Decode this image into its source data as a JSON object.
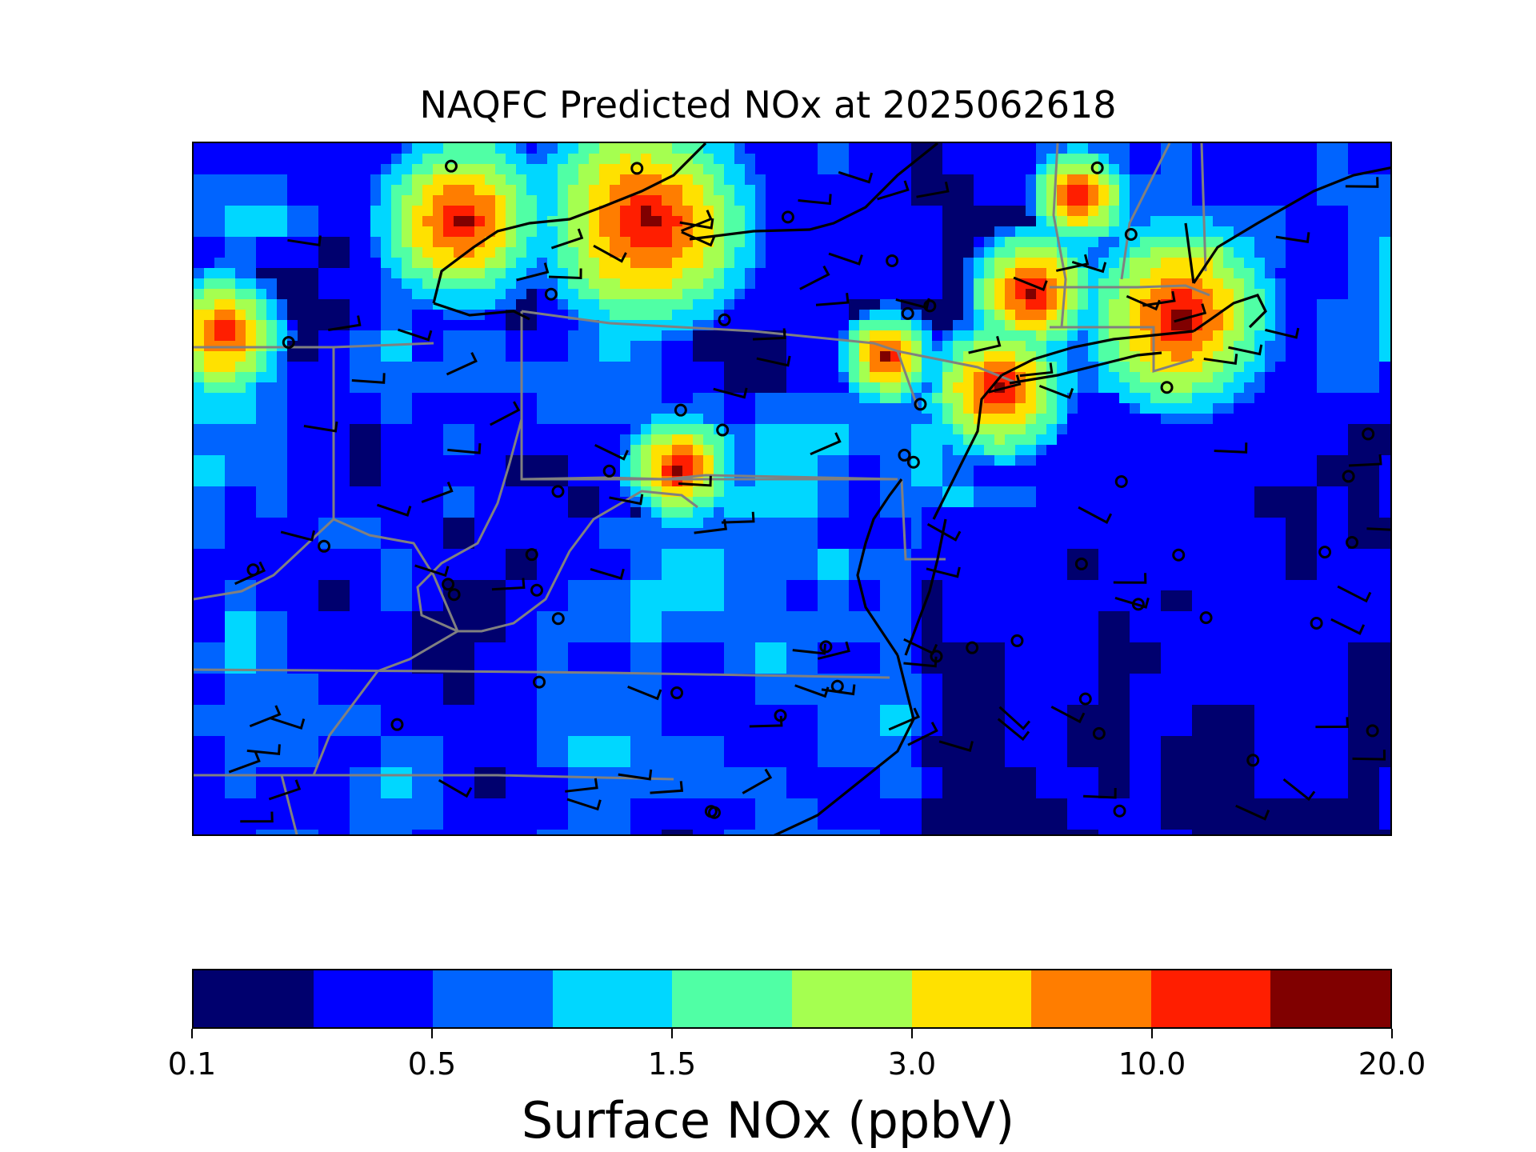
{
  "title": "NAQFC Predicted NOx at 2025062618",
  "colorbar": {
    "label": "Surface NOx (ppbV)",
    "colors": [
      "#00006e",
      "#0000ff",
      "#0064ff",
      "#00d7ff",
      "#50ffa5",
      "#a5ff50",
      "#ffe100",
      "#ff7d00",
      "#ff1e00",
      "#800000"
    ],
    "ticks": [
      {
        "label": "0.1",
        "index": 0
      },
      {
        "label": "0.5",
        "index": 2
      },
      {
        "label": "1.5",
        "index": 4
      },
      {
        "label": "3.0",
        "index": 6
      },
      {
        "label": "10.0",
        "index": 8
      },
      {
        "label": "20.0",
        "index": 10
      }
    ]
  },
  "map": {
    "region": "Eastern United States",
    "coastline_color": "#000000",
    "boundary_color": "#808080",
    "station_markers": "black open circles",
    "wind_barbs": "black"
  }
}
